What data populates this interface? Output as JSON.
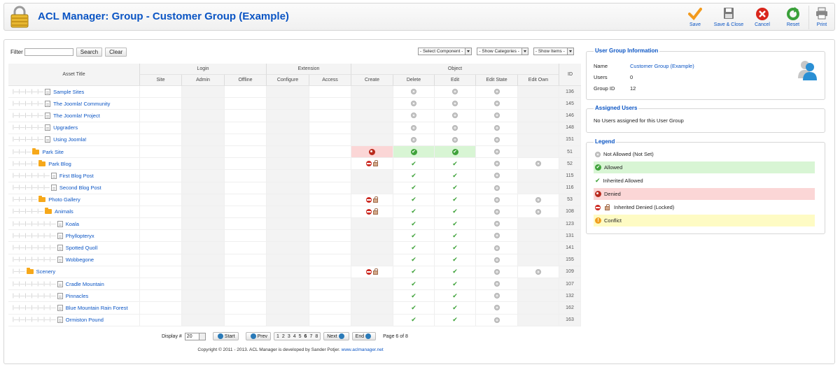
{
  "header": {
    "title": "ACL Manager: Group - Customer Group (Example)",
    "buttons": {
      "save": "Save",
      "save_close": "Save & Close",
      "cancel": "Cancel",
      "reset": "Reset",
      "print": "Print"
    }
  },
  "filter": {
    "label": "Filter",
    "search": "Search",
    "clear": "Clear",
    "select_component": "- Select Component -",
    "show_categories": "- Show Categories -",
    "show_items": "- Show Items -"
  },
  "table": {
    "groups": {
      "asset_title": "Asset Title",
      "login": "Login",
      "extension": "Extension",
      "object": "Object",
      "id": "ID"
    },
    "columns": {
      "site": "Site",
      "admin": "Admin",
      "offline": "Offline",
      "configure": "Configure",
      "access": "Access",
      "create": "Create",
      "delete": "Delete",
      "edit": "Edit",
      "edit_state": "Edit State",
      "edit_own": "Edit Own"
    },
    "rows": [
      {
        "title": "Sample Sites",
        "id": "136"
      },
      {
        "title": "The Joomla! Community",
        "id": "145"
      },
      {
        "title": "The Joomla! Project",
        "id": "146"
      },
      {
        "title": "Upgraders",
        "id": "148"
      },
      {
        "title": "Using Joomla!",
        "id": "151"
      },
      {
        "title": "Park Site",
        "id": "51"
      },
      {
        "title": "Park Blog",
        "id": "52"
      },
      {
        "title": "First Blog Post",
        "id": "115"
      },
      {
        "title": "Second Blog Post",
        "id": "116"
      },
      {
        "title": "Photo Gallery",
        "id": "53"
      },
      {
        "title": "Animals",
        "id": "108"
      },
      {
        "title": "Koala",
        "id": "123"
      },
      {
        "title": "Phyllopteryx",
        "id": "131"
      },
      {
        "title": "Spotted Quoll",
        "id": "141"
      },
      {
        "title": "Wobbegone",
        "id": "155"
      },
      {
        "title": "Scenery",
        "id": "109"
      },
      {
        "title": "Cradle Mountain",
        "id": "107"
      },
      {
        "title": "Pinnacles",
        "id": "132"
      },
      {
        "title": "Blue Mountain Rain Forest",
        "id": "162"
      },
      {
        "title": "Ormiston Pound",
        "id": "163"
      }
    ]
  },
  "pagination": {
    "display_label": "Display #",
    "display_value": "20",
    "start": "Start",
    "prev": "Prev",
    "pages": [
      "1",
      "2",
      "3",
      "4",
      "5",
      "6",
      "7",
      "8"
    ],
    "current_page": "6",
    "next": "Next",
    "end": "End",
    "page_of": "Page 6 of 8"
  },
  "footer": {
    "copyright": "Copyright © 2011 - 2013. ACL Manager is developed by Sander Potjer.",
    "link": "www.aclmanager.net"
  },
  "group_info": {
    "title": "User Group Information",
    "name_label": "Name",
    "name_value": "Customer Group (Example)",
    "users_label": "Users",
    "users_value": "0",
    "group_id_label": "Group ID",
    "group_id_value": "12"
  },
  "assigned_users": {
    "title": "Assigned Users",
    "text": "No Users assigned for this User Group"
  },
  "legend": {
    "title": "Legend",
    "not_allowed": "Not Allowed (Not Set)",
    "allowed": "Allowed",
    "inherited_allowed": "Inherited Allowed",
    "denied": "Denied",
    "inherited_denied": "Inherited Denied (Locked)",
    "conflict": "Conflict"
  }
}
